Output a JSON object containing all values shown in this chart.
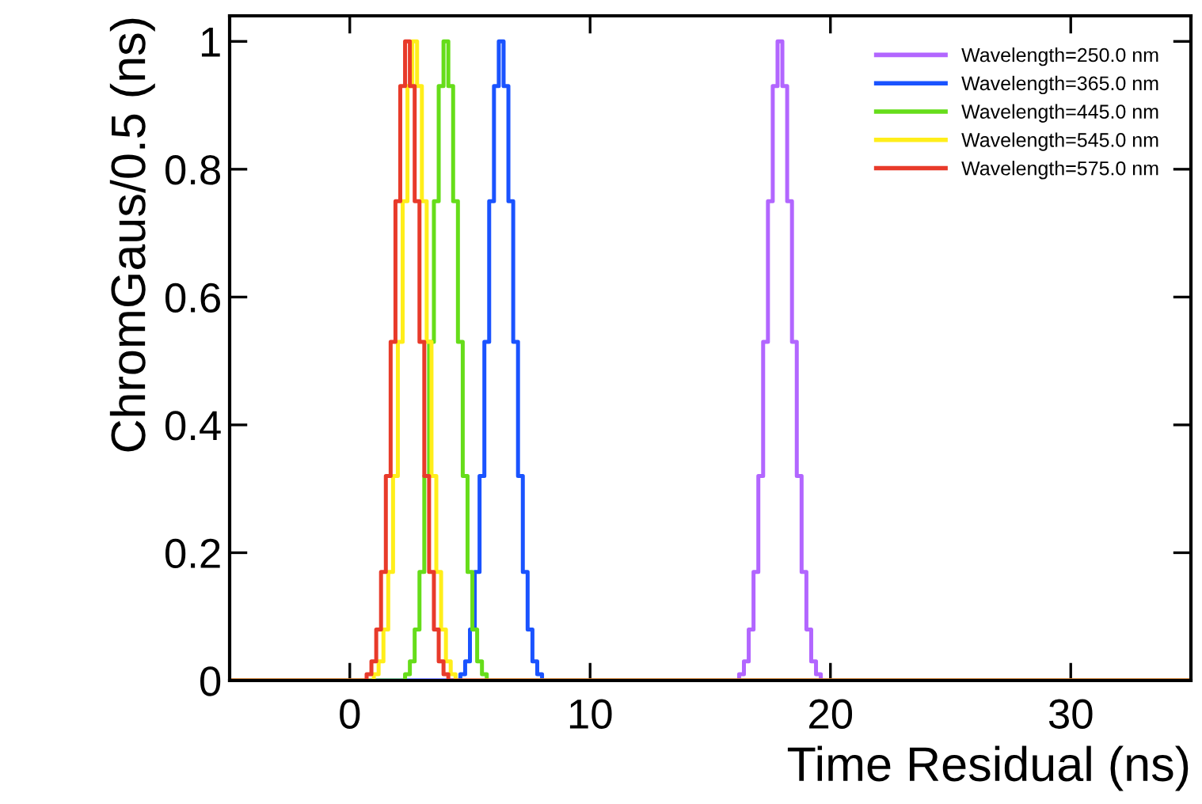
{
  "chart_data": {
    "type": "step",
    "xlabel": "Time Residual (ns)",
    "ylabel": "ChromGaus/0.5 (ns)",
    "xlim": [
      -5,
      35
    ],
    "ylim": [
      0,
      1.04
    ],
    "xticks": [
      0,
      10,
      20,
      30
    ],
    "yticks": [
      0,
      0.2,
      0.4,
      0.6,
      0.8,
      1
    ],
    "grid": false,
    "legend": "top right",
    "series": [
      {
        "name": "Wavelength=250.0 nm",
        "color": "#b266ff",
        "x": [
          -5,
          15.9,
          16.1,
          16.3,
          16.5,
          16.7,
          16.9,
          17.1,
          17.3,
          17.5,
          17.7,
          17.9,
          18.1,
          18.3,
          18.5,
          18.7,
          18.9,
          19.1,
          19.3,
          19.5,
          19.7,
          19.9,
          35
        ],
        "values": [
          0,
          0,
          0,
          0.01,
          0.03,
          0.08,
          0.17,
          0.32,
          0.53,
          0.75,
          0.93,
          1,
          0.93,
          0.75,
          0.53,
          0.32,
          0.17,
          0.08,
          0.03,
          0.01,
          0,
          0,
          0
        ]
      },
      {
        "name": "Wavelength=365.0 nm",
        "color": "#1a53ff",
        "x": [
          -5,
          4.3,
          4.5,
          4.7,
          4.9,
          5.1,
          5.3,
          5.5,
          5.7,
          5.9,
          6.1,
          6.3,
          6.5,
          6.7,
          6.9,
          7.1,
          7.3,
          7.5,
          7.7,
          7.9,
          8.1,
          8.3,
          35
        ],
        "values": [
          0,
          0,
          0,
          0.01,
          0.03,
          0.08,
          0.17,
          0.32,
          0.53,
          0.75,
          0.93,
          1,
          0.93,
          0.75,
          0.53,
          0.32,
          0.17,
          0.08,
          0.03,
          0.01,
          0,
          0,
          0
        ]
      },
      {
        "name": "Wavelength=445.0 nm",
        "color": "#66dd1a",
        "x": [
          -5,
          2.0,
          2.2,
          2.4,
          2.6,
          2.8,
          3.0,
          3.2,
          3.4,
          3.6,
          3.8,
          4.0,
          4.2,
          4.4,
          4.6,
          4.8,
          5.0,
          5.2,
          5.4,
          5.6,
          5.8,
          6.0,
          35
        ],
        "values": [
          0,
          0,
          0,
          0.01,
          0.03,
          0.08,
          0.17,
          0.32,
          0.53,
          0.75,
          0.93,
          1,
          0.93,
          0.75,
          0.53,
          0.32,
          0.17,
          0.08,
          0.03,
          0.01,
          0,
          0,
          0
        ]
      },
      {
        "name": "Wavelength=545.0 nm",
        "color": "#ffee1a",
        "x": [
          -5,
          0.7,
          0.9,
          1.1,
          1.3,
          1.5,
          1.7,
          1.9,
          2.1,
          2.3,
          2.5,
          2.7,
          2.9,
          3.1,
          3.3,
          3.5,
          3.7,
          3.9,
          4.1,
          4.3,
          4.5,
          4.7,
          35
        ],
        "values": [
          0,
          0,
          0,
          0.01,
          0.03,
          0.08,
          0.17,
          0.32,
          0.53,
          0.75,
          0.93,
          1,
          0.93,
          0.75,
          0.53,
          0.32,
          0.17,
          0.08,
          0.03,
          0.01,
          0,
          0,
          0
        ]
      },
      {
        "name": "Wavelength=575.0 nm",
        "color": "#e83a2a",
        "x": [
          -5,
          0.4,
          0.6,
          0.8,
          1.0,
          1.2,
          1.4,
          1.6,
          1.8,
          2.0,
          2.2,
          2.4,
          2.6,
          2.8,
          3.0,
          3.2,
          3.4,
          3.6,
          3.8,
          4.0,
          4.2,
          4.4,
          35
        ],
        "values": [
          0,
          0,
          0,
          0.01,
          0.03,
          0.08,
          0.17,
          0.32,
          0.53,
          0.75,
          0.93,
          1,
          0.93,
          0.75,
          0.53,
          0.32,
          0.17,
          0.08,
          0.03,
          0.01,
          0,
          0,
          0
        ]
      }
    ]
  }
}
